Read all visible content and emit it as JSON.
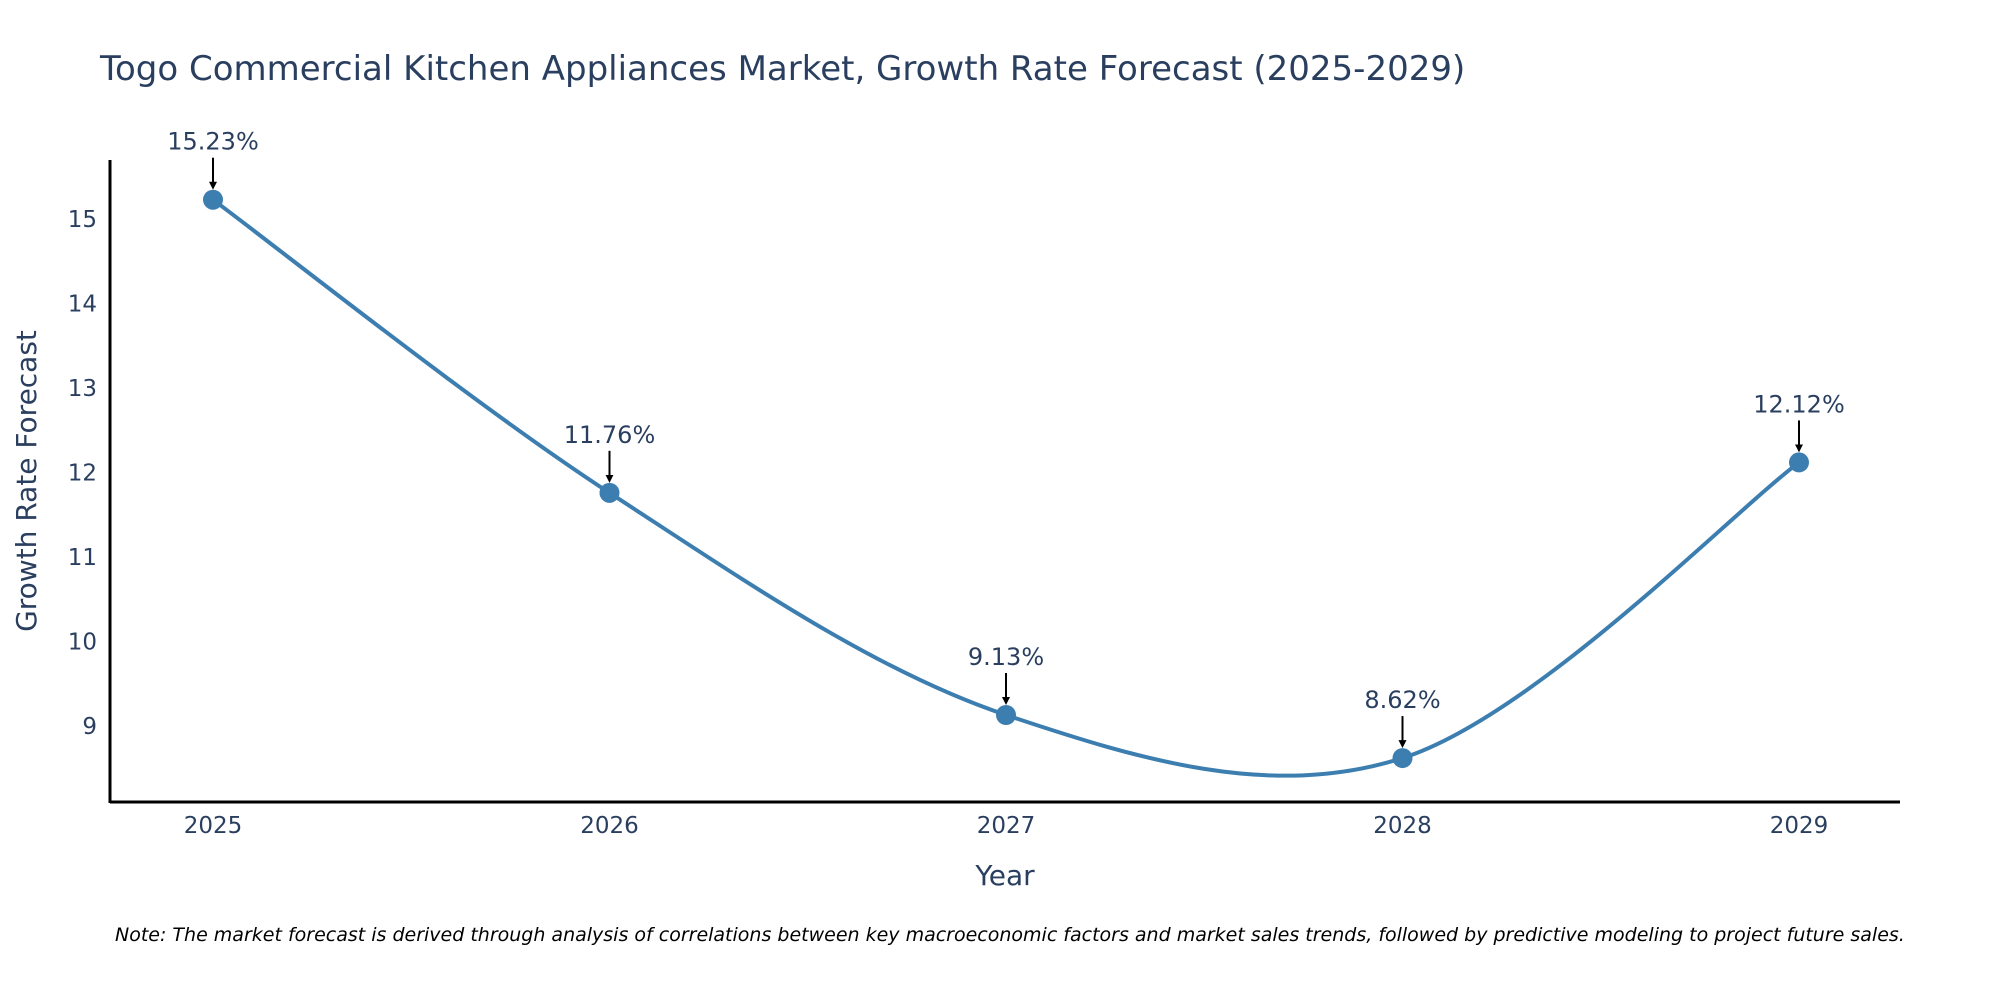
{
  "chart_data": {
    "type": "line",
    "title": "Togo Commercial Kitchen Appliances Market, Growth Rate Forecast (2025-2029)",
    "xlabel": "Year",
    "ylabel": "Growth Rate Forecast",
    "categories": [
      "2025",
      "2026",
      "2027",
      "2028",
      "2029"
    ],
    "series": [
      {
        "name": "Growth Rate Forecast",
        "values": [
          15.23,
          11.76,
          9.13,
          8.62,
          12.12
        ]
      }
    ],
    "data_labels": [
      "15.23%",
      "11.76%",
      "9.13%",
      "8.62%",
      "12.12%"
    ],
    "yticks": [
      9,
      10,
      11,
      12,
      13,
      14,
      15
    ],
    "ylim": [
      8.1,
      15.7
    ],
    "line_shape": "spline",
    "grid": false,
    "colors": {
      "line": "#3d7eb0",
      "marker": "#3d7eb0",
      "text": "#2a3f5f",
      "arrow": "#000000"
    }
  },
  "note": "Note: The market forecast is derived through analysis of correlations between key macroeconomic factors and market sales trends, followed by predictive modeling to project future sales."
}
